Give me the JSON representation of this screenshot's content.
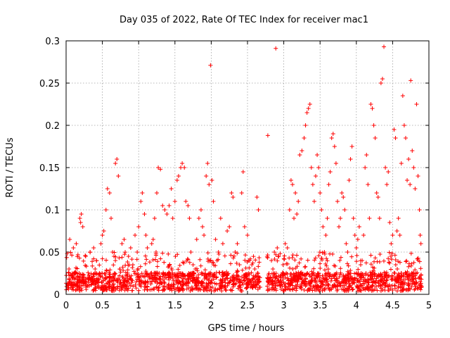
{
  "chart_data": {
    "type": "scatter",
    "title": "Day 035 of 2022, Rate Of TEC Index for receiver mac1",
    "xlabel": "GPS time / hours",
    "ylabel": "ROTI / TECUs",
    "xlim": [
      0,
      5
    ],
    "ylim": [
      0,
      0.3
    ],
    "xticks": [
      0,
      0.5,
      1,
      1.5,
      2,
      2.5,
      3,
      3.5,
      4,
      4.5,
      5
    ],
    "xtick_labels": [
      "0",
      "0.5",
      "1",
      "1.5",
      "2",
      "2.5",
      "3",
      "3.5",
      "4",
      "4.5",
      "5"
    ],
    "yticks": [
      0,
      0.05,
      0.1,
      0.15,
      0.2,
      0.25,
      0.3
    ],
    "ytick_labels": [
      "0",
      "0.05",
      "0.1",
      "0.15",
      "0.2",
      "0.25",
      "0.3"
    ],
    "grid": true,
    "marker": "+",
    "colors": {
      "points": "#ff0000",
      "grid": "#a0a0a0",
      "frame": "#000000"
    },
    "series": [
      {
        "points": [
          [
            0.02,
            0.012
          ],
          [
            0.04,
            0.03
          ],
          [
            0.05,
            0.065
          ],
          [
            0.07,
            0.022
          ],
          [
            0.09,
            0.008
          ],
          [
            0.1,
            0.055
          ],
          [
            0.12,
            0.018
          ],
          [
            0.14,
            0.06
          ],
          [
            0.16,
            0.01
          ],
          [
            0.18,
            0.025
          ],
          [
            0.19,
            0.09
          ],
          [
            0.2,
            0.085
          ],
          [
            0.21,
            0.095
          ],
          [
            0.23,
            0.08
          ],
          [
            0.25,
            0.014
          ],
          [
            0.27,
            0.045
          ],
          [
            0.3,
            0.02
          ],
          [
            0.33,
            0.05
          ],
          [
            0.35,
            0.012
          ],
          [
            0.38,
            0.055
          ],
          [
            0.4,
            0.03
          ],
          [
            0.42,
            0.04
          ],
          [
            0.45,
            0.01
          ],
          [
            0.48,
            0.06
          ],
          [
            0.5,
            0.07
          ],
          [
            0.52,
            0.075
          ],
          [
            0.55,
            0.1
          ],
          [
            0.57,
            0.125
          ],
          [
            0.6,
            0.12
          ],
          [
            0.62,
            0.09
          ],
          [
            0.64,
            0.05
          ],
          [
            0.66,
            0.045
          ],
          [
            0.68,
            0.155
          ],
          [
            0.7,
            0.16
          ],
          [
            0.72,
            0.14
          ],
          [
            0.74,
            0.03
          ],
          [
            0.77,
            0.06
          ],
          [
            0.8,
            0.065
          ],
          [
            0.83,
            0.015
          ],
          [
            0.86,
            0.045
          ],
          [
            0.89,
            0.055
          ],
          [
            0.92,
            0.035
          ],
          [
            0.95,
            0.07
          ],
          [
            0.98,
            0.05
          ],
          [
            1.0,
            0.08
          ],
          [
            1.03,
            0.11
          ],
          [
            1.05,
            0.12
          ],
          [
            1.08,
            0.095
          ],
          [
            1.1,
            0.07
          ],
          [
            1.12,
            0.055
          ],
          [
            1.15,
            0.02
          ],
          [
            1.18,
            0.06
          ],
          [
            1.2,
            0.065
          ],
          [
            1.22,
            0.09
          ],
          [
            1.25,
            0.12
          ],
          [
            1.27,
            0.15
          ],
          [
            1.3,
            0.148
          ],
          [
            1.33,
            0.105
          ],
          [
            1.36,
            0.1
          ],
          [
            1.39,
            0.095
          ],
          [
            1.42,
            0.105
          ],
          [
            1.45,
            0.125
          ],
          [
            1.47,
            0.09
          ],
          [
            1.5,
            0.11
          ],
          [
            1.53,
            0.135
          ],
          [
            1.55,
            0.14
          ],
          [
            1.58,
            0.15
          ],
          [
            1.6,
            0.155
          ],
          [
            1.63,
            0.15
          ],
          [
            1.65,
            0.11
          ],
          [
            1.68,
            0.105
          ],
          [
            1.7,
            0.09
          ],
          [
            1.72,
            0.05
          ],
          [
            1.75,
            0.035
          ],
          [
            1.78,
            0.03
          ],
          [
            1.8,
            0.065
          ],
          [
            1.83,
            0.09
          ],
          [
            1.86,
            0.1
          ],
          [
            1.88,
            0.08
          ],
          [
            1.9,
            0.07
          ],
          [
            1.93,
            0.14
          ],
          [
            1.95,
            0.155
          ],
          [
            1.97,
            0.13
          ],
          [
            1.99,
            0.271
          ],
          [
            2.01,
            0.135
          ],
          [
            2.03,
            0.11
          ],
          [
            2.06,
            0.065
          ],
          [
            2.08,
            0.04
          ],
          [
            2.1,
            0.05
          ],
          [
            2.13,
            0.09
          ],
          [
            2.16,
            0.06
          ],
          [
            2.19,
            0.025
          ],
          [
            2.22,
            0.075
          ],
          [
            2.25,
            0.08
          ],
          [
            2.28,
            0.12
          ],
          [
            2.3,
            0.115
          ],
          [
            2.33,
            0.05
          ],
          [
            2.36,
            0.06
          ],
          [
            2.39,
            0.035
          ],
          [
            2.42,
            0.12
          ],
          [
            2.44,
            0.145
          ],
          [
            2.46,
            0.08
          ],
          [
            2.5,
            0.07
          ],
          [
            2.53,
            0.04
          ],
          [
            2.56,
            0.035
          ],
          [
            2.58,
            0.022
          ],
          [
            2.6,
            0.03
          ],
          [
            2.63,
            0.115
          ],
          [
            2.65,
            0.1
          ],
          [
            2.67,
            0.02
          ],
          [
            2.78,
            0.188
          ],
          [
            2.8,
            0.012
          ],
          [
            2.83,
            0.04
          ],
          [
            2.85,
            0.03
          ],
          [
            2.87,
            0.05
          ],
          [
            2.89,
            0.291
          ],
          [
            2.91,
            0.055
          ],
          [
            2.93,
            0.045
          ],
          [
            2.96,
            0.02
          ],
          [
            2.99,
            0.035
          ],
          [
            3.02,
            0.06
          ],
          [
            3.05,
            0.055
          ],
          [
            3.08,
            0.1
          ],
          [
            3.1,
            0.135
          ],
          [
            3.12,
            0.13
          ],
          [
            3.14,
            0.09
          ],
          [
            3.16,
            0.12
          ],
          [
            3.18,
            0.095
          ],
          [
            3.2,
            0.11
          ],
          [
            3.22,
            0.165
          ],
          [
            3.25,
            0.17
          ],
          [
            3.28,
            0.185
          ],
          [
            3.3,
            0.2
          ],
          [
            3.32,
            0.215
          ],
          [
            3.34,
            0.22
          ],
          [
            3.36,
            0.225
          ],
          [
            3.38,
            0.15
          ],
          [
            3.4,
            0.13
          ],
          [
            3.42,
            0.11
          ],
          [
            3.44,
            0.14
          ],
          [
            3.46,
            0.165
          ],
          [
            3.48,
            0.15
          ],
          [
            3.5,
            0.12
          ],
          [
            3.52,
            0.1
          ],
          [
            3.54,
            0.08
          ],
          [
            3.56,
            0.05
          ],
          [
            3.58,
            0.07
          ],
          [
            3.6,
            0.09
          ],
          [
            3.62,
            0.13
          ],
          [
            3.64,
            0.145
          ],
          [
            3.66,
            0.185
          ],
          [
            3.68,
            0.19
          ],
          [
            3.7,
            0.175
          ],
          [
            3.72,
            0.155
          ],
          [
            3.74,
            0.11
          ],
          [
            3.76,
            0.08
          ],
          [
            3.78,
            0.09
          ],
          [
            3.8,
            0.12
          ],
          [
            3.82,
            0.115
          ],
          [
            3.84,
            0.1
          ],
          [
            3.86,
            0.06
          ],
          [
            3.88,
            0.05
          ],
          [
            3.9,
            0.135
          ],
          [
            3.92,
            0.16
          ],
          [
            3.94,
            0.175
          ],
          [
            3.96,
            0.09
          ],
          [
            3.98,
            0.07
          ],
          [
            4.0,
            0.055
          ],
          [
            4.02,
            0.065
          ],
          [
            4.04,
            0.08
          ],
          [
            4.06,
            0.035
          ],
          [
            4.08,
            0.04
          ],
          [
            4.1,
            0.07
          ],
          [
            4.12,
            0.15
          ],
          [
            4.14,
            0.165
          ],
          [
            4.16,
            0.13
          ],
          [
            4.18,
            0.09
          ],
          [
            4.2,
            0.225
          ],
          [
            4.22,
            0.22
          ],
          [
            4.24,
            0.2
          ],
          [
            4.26,
            0.185
          ],
          [
            4.28,
            0.12
          ],
          [
            4.3,
            0.115
          ],
          [
            4.32,
            0.09
          ],
          [
            4.34,
            0.25
          ],
          [
            4.36,
            0.255
          ],
          [
            4.38,
            0.293
          ],
          [
            4.4,
            0.15
          ],
          [
            4.42,
            0.13
          ],
          [
            4.44,
            0.145
          ],
          [
            4.46,
            0.085
          ],
          [
            4.48,
            0.06
          ],
          [
            4.5,
            0.07
          ],
          [
            4.52,
            0.195
          ],
          [
            4.54,
            0.185
          ],
          [
            4.56,
            0.075
          ],
          [
            4.58,
            0.09
          ],
          [
            4.6,
            0.07
          ],
          [
            4.62,
            0.155
          ],
          [
            4.64,
            0.235
          ],
          [
            4.66,
            0.2
          ],
          [
            4.68,
            0.185
          ],
          [
            4.7,
            0.135
          ],
          [
            4.72,
            0.16
          ],
          [
            4.74,
            0.13
          ],
          [
            4.75,
            0.253
          ],
          [
            4.77,
            0.17
          ],
          [
            4.79,
            0.15
          ],
          [
            4.81,
            0.125
          ],
          [
            4.83,
            0.225
          ],
          [
            4.85,
            0.14
          ],
          [
            4.87,
            0.1
          ],
          [
            4.88,
            0.07
          ],
          [
            4.89,
            0.06
          ]
        ]
      }
    ]
  }
}
